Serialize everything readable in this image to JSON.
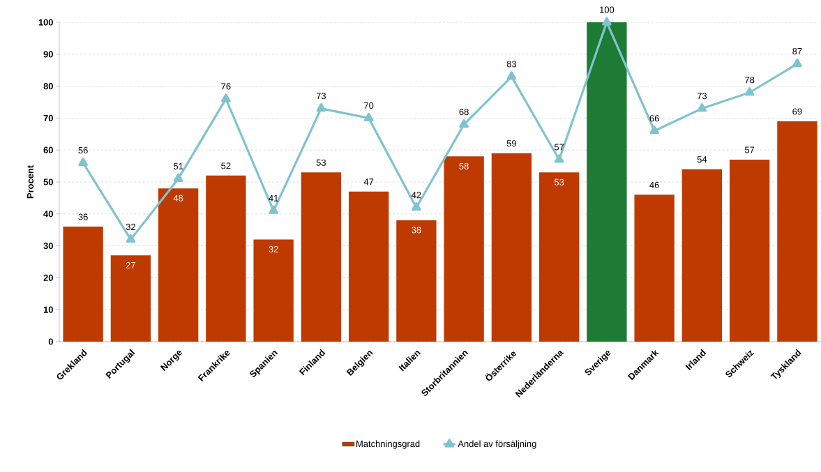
{
  "chart_data": {
    "type": "bar",
    "ylabel": "Procent",
    "categories": [
      "Grekland",
      "Portugal",
      "Norge",
      "Frankrike",
      "Spanien",
      "Finland",
      "Belgien",
      "Italien",
      "Storbritannien",
      "Österrike",
      "Nederländerna",
      "Sverige",
      "Danmark",
      "Irland",
      "Schweiz",
      "Tyskland"
    ],
    "series": [
      {
        "name": "Matchningsgrad",
        "color": "#bf3a00",
        "colors": [
          "#bf3a00",
          "#bf3a00",
          "#bf3a00",
          "#bf3a00",
          "#bf3a00",
          "#bf3a00",
          "#bf3a00",
          "#bf3a00",
          "#bf3a00",
          "#bf3a00",
          "#bf3a00",
          "#1e7b34",
          "#bf3a00",
          "#bf3a00",
          "#bf3a00",
          "#bf3a00"
        ],
        "values": [
          36,
          27,
          48,
          52,
          32,
          53,
          47,
          38,
          58,
          59,
          53,
          100,
          46,
          54,
          57,
          69
        ],
        "value_labels": [
          "36",
          "27",
          "48",
          "52",
          "32",
          "53",
          "47",
          "38",
          "58",
          "59",
          "53",
          null,
          "46",
          "54",
          "57",
          "69"
        ]
      },
      {
        "name": "Andel av försäljning",
        "type": "line",
        "color": "#7fc3d0",
        "marker": "triangle",
        "line_style": "solid",
        "values": [
          56,
          32,
          51,
          76,
          41,
          73,
          70,
          42,
          68,
          83,
          57,
          100,
          66,
          73,
          78,
          87
        ],
        "value_labels": [
          "56",
          "32",
          "51",
          "76",
          "41",
          "73",
          "70",
          "42",
          "68",
          "83",
          "57",
          "100",
          "66",
          "73",
          "78",
          "87"
        ]
      }
    ],
    "ylim": [
      0,
      100
    ],
    "yticks": [
      0,
      10,
      20,
      30,
      40,
      50,
      60,
      70,
      80,
      90,
      100
    ],
    "grid": "y",
    "legend": "bottom"
  }
}
